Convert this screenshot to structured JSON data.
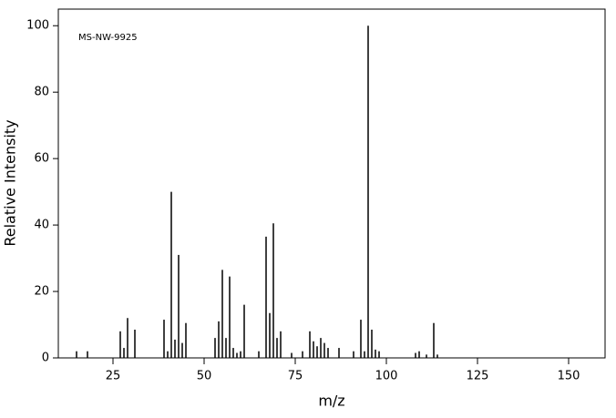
{
  "chart_data": {
    "type": "bar",
    "annotation": "MS-NW-9925",
    "xlabel": "m/z",
    "ylabel": "Relative Intensity",
    "x": [
      15,
      18,
      27,
      28,
      29,
      31,
      39,
      40,
      41,
      42,
      43,
      44,
      45,
      53,
      54,
      55,
      56,
      57,
      58,
      59,
      60,
      61,
      65,
      67,
      68,
      69,
      70,
      71,
      74,
      77,
      79,
      80,
      81,
      82,
      83,
      84,
      87,
      91,
      93,
      94,
      95,
      96,
      97,
      98,
      108,
      109,
      111,
      113,
      114
    ],
    "values": [
      2,
      2,
      8,
      3,
      12,
      8.5,
      11.5,
      2,
      50,
      5.5,
      31,
      4.5,
      10.5,
      6,
      11,
      26.5,
      6,
      24.5,
      3,
      1.5,
      2,
      16,
      2,
      36.5,
      13.5,
      40.5,
      6,
      8,
      1.5,
      2,
      8,
      5,
      3.5,
      6,
      4.5,
      3,
      3,
      2,
      11.5,
      2,
      100,
      8.5,
      2.5,
      2,
      1.5,
      2,
      1,
      10.5,
      1
    ],
    "color": "#000000",
    "xlim": [
      10,
      160
    ],
    "xticks": [
      25,
      50,
      75,
      100,
      125,
      150
    ],
    "ylim": [
      0,
      105
    ],
    "yticks": [
      0,
      20,
      40,
      60,
      80,
      100
    ],
    "grid": false
  }
}
